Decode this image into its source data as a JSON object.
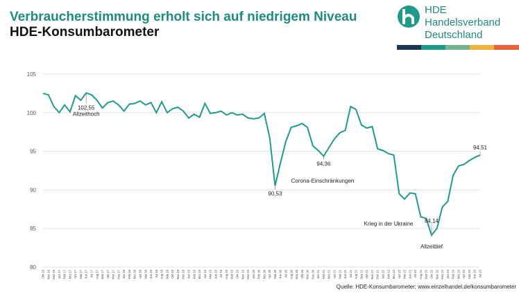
{
  "header": {
    "title": "Verbraucherstimmung erholt sich auf niedrigem Niveau",
    "subtitle": "HDE-Konsumbarometer",
    "logo": {
      "short": "HDE",
      "line1": "Handelsverband",
      "line2": "Deutschland"
    }
  },
  "chart_data": {
    "type": "line",
    "color": "#1f9a8a",
    "grid": true,
    "categories": [
      "Okt 16",
      "Nov 16",
      "Dez 16",
      "Jan 17",
      "Feb 17",
      "Mrz 17",
      "Apr 17",
      "Mai 17",
      "Jun 17",
      "Jul 17",
      "Aug 17",
      "Sep 17",
      "Okt 17",
      "Nov 17",
      "Dez 17",
      "Jan 18",
      "Feb 18",
      "Mrz 18",
      "Apr 18",
      "Mai 18",
      "Jun 18",
      "Jul 18",
      "Aug 18",
      "Sep 18",
      "Okt 18",
      "Nov 18",
      "Dez 18",
      "Jan 19",
      "Feb 19",
      "Mrz 19",
      "Apr 19",
      "Mai 19",
      "Jun 19",
      "Jul 19",
      "Aug 19",
      "Sep 19",
      "Okt 19",
      "Nov 19",
      "Dez 19",
      "Jan 20",
      "Feb 20",
      "Mrz 20",
      "Apr 20",
      "Mai 20",
      "Jun 20",
      "Jul 20",
      "Aug 20",
      "Sep 20",
      "Okt 20",
      "Nov 20",
      "Dez 20",
      "Jan 21",
      "Feb 21",
      "Mrz 21",
      "Apr 21",
      "Mai 21",
      "Jun 21",
      "Jul 21",
      "Aug 21",
      "Sep 21",
      "Okt 21",
      "Nov 21",
      "Dez 21",
      "Jan 22",
      "Feb 22",
      "Mrz 22",
      "Apr 22",
      "Mai 22",
      "Jun 22",
      "Jul 22",
      "Aug 22",
      "Sep 22",
      "Okt 22",
      "Nov 22",
      "Dez 22",
      "Jan 23",
      "Feb 23",
      "Mrz 23",
      "Apr 23",
      "Mai 23",
      "Jun 23",
      "Jul 23"
    ],
    "values": [
      102.5,
      102.3,
      100.8,
      100.0,
      101.0,
      100.1,
      102.2,
      101.6,
      102.55,
      102.3,
      101.6,
      100.6,
      101.3,
      101.5,
      101.0,
      100.2,
      101.1,
      101.2,
      101.5,
      101.0,
      101.3,
      100.0,
      101.4,
      100.0,
      100.5,
      100.7,
      100.2,
      99.3,
      99.8,
      99.4,
      101.2,
      99.9,
      100.0,
      100.2,
      99.7,
      100.0,
      99.7,
      99.8,
      99.3,
      99.2,
      99.3,
      99.9,
      96.8,
      90.53,
      93.5,
      96.3,
      98.1,
      98.3,
      98.6,
      98.1,
      95.7,
      95.1,
      94.36,
      95.5,
      96.6,
      97.4,
      97.7,
      100.8,
      100.4,
      98.4,
      98.0,
      98.2,
      95.3,
      95.1,
      94.7,
      94.5,
      89.5,
      88.8,
      89.6,
      89.5,
      86.5,
      86.3,
      84.14,
      85.0,
      87.8,
      88.5,
      91.9,
      93.1,
      93.3,
      93.8,
      94.2,
      94.51
    ],
    "value_labels": [
      null,
      null,
      null,
      null,
      null,
      null,
      null,
      null,
      "102,55",
      null,
      null,
      null,
      null,
      null,
      null,
      null,
      null,
      null,
      null,
      null,
      null,
      null,
      null,
      null,
      null,
      null,
      null,
      null,
      null,
      null,
      null,
      null,
      null,
      null,
      null,
      null,
      null,
      null,
      null,
      null,
      null,
      null,
      null,
      "90,53",
      null,
      null,
      null,
      null,
      null,
      null,
      null,
      null,
      "94,36",
      null,
      null,
      null,
      null,
      null,
      null,
      null,
      null,
      null,
      null,
      null,
      null,
      null,
      null,
      null,
      null,
      null,
      null,
      null,
      "84,14",
      null,
      null,
      null,
      null,
      null,
      null,
      null,
      null,
      "94,51"
    ],
    "annotations": [
      "Allzeithoch",
      "Corona-Einschränkungen",
      "Krieg in der Ukraine",
      "Allzeittief"
    ],
    "ylim": [
      80,
      105
    ],
    "yticks": [
      80,
      85,
      90,
      95,
      100,
      105
    ]
  },
  "source": "Quelle: HDE-Konsumbarometer; www.einzelhandel.de/konsumbarometer"
}
